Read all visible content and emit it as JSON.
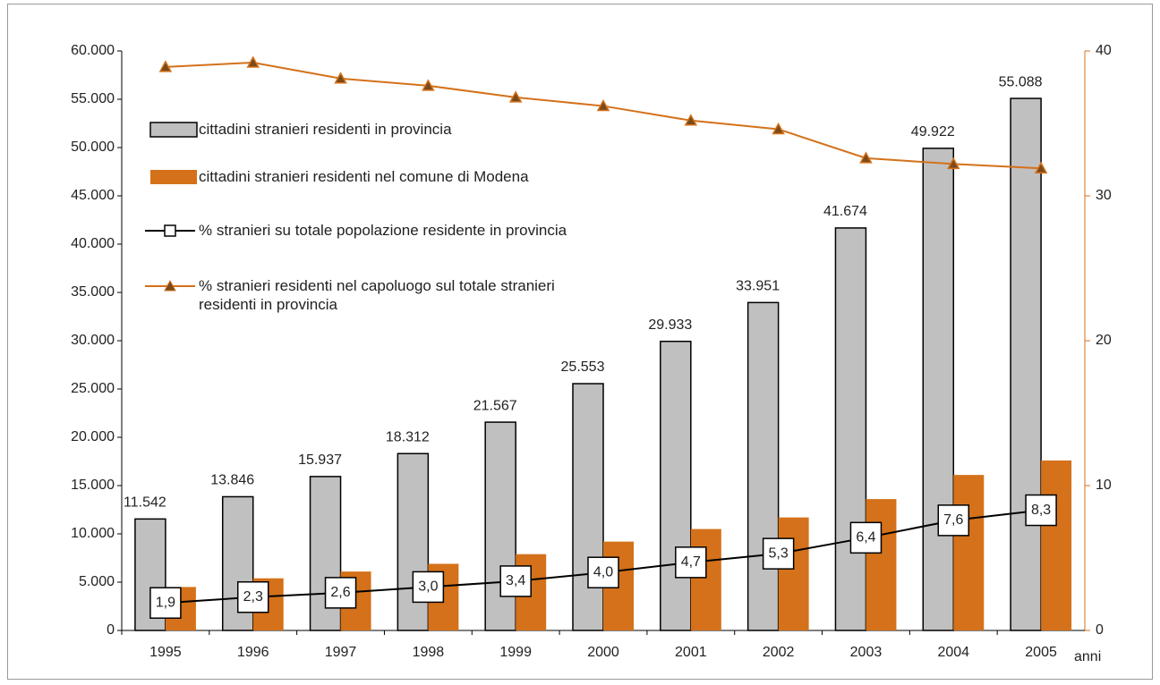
{
  "chart_data": {
    "type": "bar_line",
    "x_label": "anni",
    "categories": [
      "1995",
      "1996",
      "1997",
      "1998",
      "1999",
      "2000",
      "2001",
      "2002",
      "2003",
      "2004",
      "2005"
    ],
    "series": [
      {
        "name": "cittadini stranieri residenti in provincia",
        "type": "bar",
        "color": "#c0c0c0",
        "values": [
          11542,
          13846,
          15937,
          18312,
          21567,
          25553,
          29933,
          33951,
          41674,
          49922,
          55088
        ],
        "value_labels": [
          "11.542",
          "13.846",
          "15.937",
          "18.312",
          "21.567",
          "25.553",
          "29.933",
          "33.951",
          "41.674",
          "49.922",
          "55.088"
        ]
      },
      {
        "name": "cittadini stranieri residenti nel comune di Modena",
        "type": "bar",
        "color": "#d4711a",
        "values": [
          4500,
          5400,
          6100,
          6900,
          7900,
          9200,
          10500,
          11700,
          13600,
          16100,
          17600
        ]
      },
      {
        "name": "% stranieri su totale popolazione residente in provincia",
        "type": "line",
        "axis": "y2",
        "color": "#000000",
        "marker": "square",
        "values": [
          1.9,
          2.3,
          2.6,
          3.0,
          3.4,
          4.0,
          4.7,
          5.3,
          6.4,
          7.6,
          8.3
        ],
        "value_labels": [
          "1,9",
          "2,3",
          "2,6",
          "3,0",
          "3,4",
          "4,0",
          "4,7",
          "5,3",
          "6,4",
          "7,6",
          "8,3"
        ]
      },
      {
        "name": "% stranieri residenti nel capoluogo sul totale stranieri residenti in provincia",
        "type": "line",
        "axis": "y2",
        "color": "#d4711a",
        "marker": "triangle",
        "values": [
          38.9,
          39.2,
          38.1,
          37.6,
          36.8,
          36.2,
          35.2,
          34.6,
          32.6,
          32.2,
          31.9
        ]
      }
    ],
    "ylim": [
      0,
      60000
    ],
    "yticks": [
      0,
      {
        "value": 5000,
        "label": "5.000"
      },
      {
        "value": 10000,
        "label": "10.000"
      },
      {
        "value": 15000,
        "label": "15.000"
      },
      {
        "value": 20000,
        "label": "20.000"
      },
      {
        "value": 25000,
        "label": "25.000"
      },
      {
        "value": 30000,
        "label": "30.000"
      },
      {
        "value": 35000,
        "label": "35.000"
      },
      {
        "value": 40000,
        "label": "40.000"
      },
      {
        "value": 45000,
        "label": "45.000"
      },
      {
        "value": 50000,
        "label": "50.000"
      },
      {
        "value": 55000,
        "label": "55.000"
      },
      {
        "value": 60000,
        "label": "60.000"
      }
    ],
    "y2lim": [
      0,
      40
    ],
    "y2ticks": [
      0,
      10,
      20,
      30,
      40
    ]
  }
}
